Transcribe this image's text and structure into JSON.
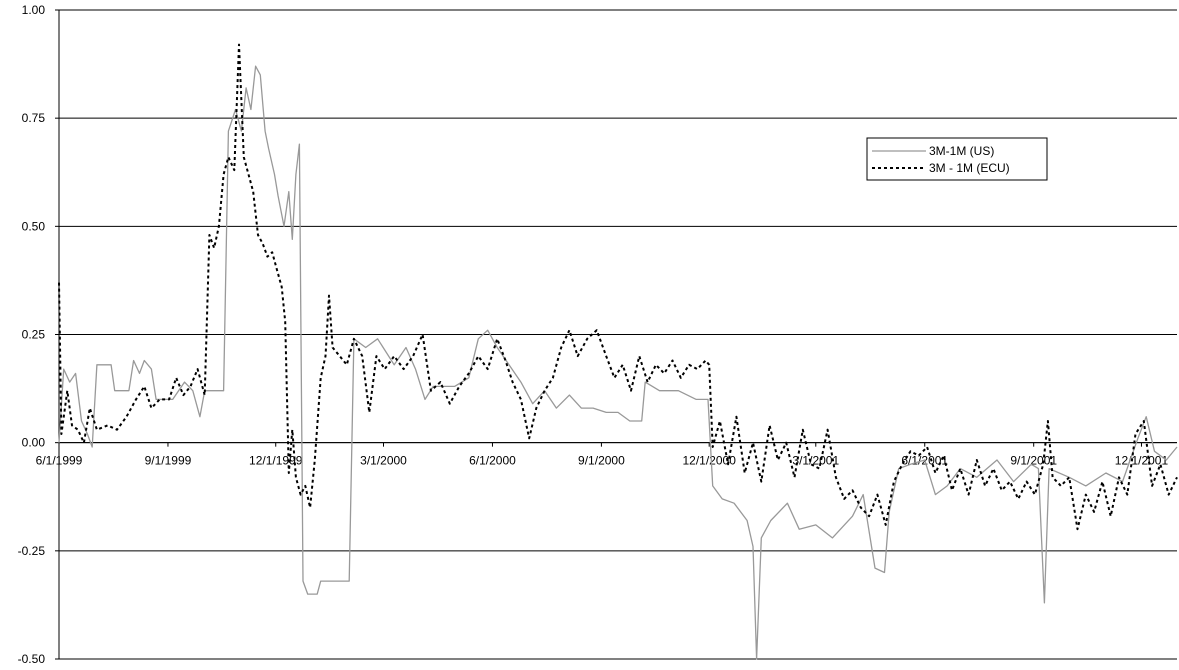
{
  "chart_data": {
    "type": "line",
    "title": "",
    "xlabel": "",
    "ylabel": "",
    "ylim": [
      -0.5,
      1.0
    ],
    "y_ticks": [
      "1.00",
      "0.75",
      "0.50",
      "0.25",
      "0.00",
      "-0.25",
      "-0.50"
    ],
    "y_tick_values": [
      1.0,
      0.75,
      0.5,
      0.25,
      0.0,
      -0.25,
      -0.5
    ],
    "x_ticks": [
      "6/1/1999",
      "9/1/1999",
      "12/1/1999",
      "3/1/2000",
      "6/1/2000",
      "9/1/2000",
      "12/1/2000",
      "3/1/2001",
      "6/1/2001",
      "9/1/2001",
      "12/1/2001"
    ],
    "x_tick_dates": [
      "1999-06-01",
      "1999-09-01",
      "1999-12-01",
      "2000-03-01",
      "2000-06-01",
      "2000-09-01",
      "2000-12-01",
      "2001-03-01",
      "2001-06-01",
      "2001-09-01",
      "2001-12-01"
    ],
    "xlim": [
      "1999-06-01",
      "2001-12-31"
    ],
    "grid": "horizontal",
    "legend_position": "top-right",
    "series": [
      {
        "name": "3M-1M (US)",
        "color": "#999999",
        "style": "solid",
        "points": [
          [
            "1999-06-01",
            0.0
          ],
          [
            "1999-06-05",
            0.17
          ],
          [
            "1999-06-10",
            0.14
          ],
          [
            "1999-06-15",
            0.16
          ],
          [
            "1999-06-20",
            0.05
          ],
          [
            "1999-06-25",
            0.02
          ],
          [
            "1999-06-29",
            -0.01
          ],
          [
            "1999-07-03",
            0.18
          ],
          [
            "1999-07-15",
            0.18
          ],
          [
            "1999-07-18",
            0.12
          ],
          [
            "1999-07-30",
            0.12
          ],
          [
            "1999-08-03",
            0.19
          ],
          [
            "1999-08-08",
            0.16
          ],
          [
            "1999-08-12",
            0.19
          ],
          [
            "1999-08-18",
            0.17
          ],
          [
            "1999-08-22",
            0.1
          ],
          [
            "1999-09-05",
            0.1
          ],
          [
            "1999-09-15",
            0.14
          ],
          [
            "1999-09-22",
            0.12
          ],
          [
            "1999-09-28",
            0.06
          ],
          [
            "1999-10-02",
            0.12
          ],
          [
            "1999-10-18",
            0.12
          ],
          [
            "1999-10-22",
            0.72
          ],
          [
            "1999-10-28",
            0.77
          ],
          [
            "1999-11-02",
            0.72
          ],
          [
            "1999-11-06",
            0.82
          ],
          [
            "1999-11-10",
            0.77
          ],
          [
            "1999-11-14",
            0.87
          ],
          [
            "1999-11-18",
            0.85
          ],
          [
            "1999-11-22",
            0.72
          ],
          [
            "1999-11-25",
            0.68
          ],
          [
            "1999-11-30",
            0.62
          ],
          [
            "1999-12-03",
            0.57
          ],
          [
            "1999-12-08",
            0.5
          ],
          [
            "1999-12-12",
            0.58
          ],
          [
            "1999-12-15",
            0.47
          ],
          [
            "1999-12-18",
            0.62
          ],
          [
            "1999-12-21",
            0.69
          ],
          [
            "1999-12-24",
            -0.32
          ],
          [
            "1999-12-28",
            -0.35
          ],
          [
            "2000-01-05",
            -0.35
          ],
          [
            "2000-01-08",
            -0.32
          ],
          [
            "2000-01-20",
            -0.32
          ],
          [
            "2000-01-25",
            -0.32
          ],
          [
            "2000-02-01",
            -0.32
          ],
          [
            "2000-02-05",
            0.24
          ],
          [
            "2000-02-15",
            0.22
          ],
          [
            "2000-02-25",
            0.24
          ],
          [
            "2000-03-10",
            0.18
          ],
          [
            "2000-03-20",
            0.22
          ],
          [
            "2000-03-28",
            0.17
          ],
          [
            "2000-04-05",
            0.1
          ],
          [
            "2000-04-12",
            0.13
          ],
          [
            "2000-04-30",
            0.13
          ],
          [
            "2000-05-12",
            0.15
          ],
          [
            "2000-05-20",
            0.24
          ],
          [
            "2000-05-28",
            0.26
          ],
          [
            "2000-06-05",
            0.22
          ],
          [
            "2000-06-15",
            0.18
          ],
          [
            "2000-06-25",
            0.14
          ],
          [
            "2000-07-05",
            0.09
          ],
          [
            "2000-07-15",
            0.12
          ],
          [
            "2000-07-25",
            0.08
          ],
          [
            "2000-08-05",
            0.11
          ],
          [
            "2000-08-15",
            0.08
          ],
          [
            "2000-08-25",
            0.08
          ],
          [
            "2000-09-05",
            0.07
          ],
          [
            "2000-09-15",
            0.07
          ],
          [
            "2000-09-25",
            0.05
          ],
          [
            "2000-10-05",
            0.05
          ],
          [
            "2000-10-08",
            0.14
          ],
          [
            "2000-10-20",
            0.12
          ],
          [
            "2000-11-05",
            0.12
          ],
          [
            "2000-11-20",
            0.1
          ],
          [
            "2000-11-30",
            0.1
          ],
          [
            "2000-12-04",
            -0.1
          ],
          [
            "2000-12-12",
            -0.13
          ],
          [
            "2000-12-22",
            -0.14
          ],
          [
            "2001-01-02",
            -0.18
          ],
          [
            "2001-01-07",
            -0.24
          ],
          [
            "2001-01-10",
            -0.5
          ],
          [
            "2001-01-14",
            -0.22
          ],
          [
            "2001-01-22",
            -0.18
          ],
          [
            "2001-02-05",
            -0.14
          ],
          [
            "2001-02-15",
            -0.2
          ],
          [
            "2001-03-01",
            -0.19
          ],
          [
            "2001-03-15",
            -0.22
          ],
          [
            "2001-04-01",
            -0.17
          ],
          [
            "2001-04-10",
            -0.12
          ],
          [
            "2001-04-20",
            -0.29
          ],
          [
            "2001-04-28",
            -0.3
          ],
          [
            "2001-05-02",
            -0.16
          ],
          [
            "2001-05-10",
            -0.06
          ],
          [
            "2001-05-20",
            -0.05
          ],
          [
            "2001-06-01",
            -0.04
          ],
          [
            "2001-06-10",
            -0.12
          ],
          [
            "2001-06-20",
            -0.1
          ],
          [
            "2001-07-01",
            -0.06
          ],
          [
            "2001-07-15",
            -0.08
          ],
          [
            "2001-08-01",
            -0.04
          ],
          [
            "2001-08-15",
            -0.09
          ],
          [
            "2001-08-30",
            -0.05
          ],
          [
            "2001-09-05",
            -0.06
          ],
          [
            "2001-09-10",
            -0.37
          ],
          [
            "2001-09-14",
            -0.06
          ],
          [
            "2001-10-01",
            -0.08
          ],
          [
            "2001-10-15",
            -0.1
          ],
          [
            "2001-11-01",
            -0.07
          ],
          [
            "2001-11-15",
            -0.09
          ],
          [
            "2001-11-28",
            0.01
          ],
          [
            "2001-12-05",
            0.06
          ],
          [
            "2001-12-12",
            -0.02
          ],
          [
            "2001-12-22",
            -0.04
          ],
          [
            "2001-12-31",
            -0.01
          ]
        ]
      },
      {
        "name": "3M - 1M (ECU)",
        "color": "#000000",
        "style": "dotted",
        "points": [
          [
            "1999-06-01",
            0.37
          ],
          [
            "1999-06-03",
            0.02
          ],
          [
            "1999-06-08",
            0.12
          ],
          [
            "1999-06-12",
            0.04
          ],
          [
            "1999-06-17",
            0.03
          ],
          [
            "1999-06-22",
            0.0
          ],
          [
            "1999-06-27",
            0.08
          ],
          [
            "1999-07-03",
            0.03
          ],
          [
            "1999-07-12",
            0.04
          ],
          [
            "1999-07-20",
            0.03
          ],
          [
            "1999-07-28",
            0.06
          ],
          [
            "1999-08-05",
            0.1
          ],
          [
            "1999-08-12",
            0.13
          ],
          [
            "1999-08-18",
            0.08
          ],
          [
            "1999-08-25",
            0.1
          ],
          [
            "1999-09-02",
            0.1
          ],
          [
            "1999-09-08",
            0.15
          ],
          [
            "1999-09-14",
            0.11
          ],
          [
            "1999-09-20",
            0.13
          ],
          [
            "1999-09-26",
            0.17
          ],
          [
            "1999-10-02",
            0.11
          ],
          [
            "1999-10-06",
            0.48
          ],
          [
            "1999-10-10",
            0.45
          ],
          [
            "1999-10-14",
            0.5
          ],
          [
            "1999-10-18",
            0.62
          ],
          [
            "1999-10-22",
            0.66
          ],
          [
            "1999-10-27",
            0.63
          ],
          [
            "1999-10-31",
            0.92
          ],
          [
            "1999-11-04",
            0.66
          ],
          [
            "1999-11-08",
            0.62
          ],
          [
            "1999-11-12",
            0.58
          ],
          [
            "1999-11-16",
            0.48
          ],
          [
            "1999-11-20",
            0.46
          ],
          [
            "1999-11-24",
            0.43
          ],
          [
            "1999-11-28",
            0.44
          ],
          [
            "1999-12-02",
            0.4
          ],
          [
            "1999-12-06",
            0.36
          ],
          [
            "1999-12-09",
            0.28
          ],
          [
            "1999-12-12",
            -0.07
          ],
          [
            "1999-12-15",
            0.03
          ],
          [
            "1999-12-18",
            -0.08
          ],
          [
            "1999-12-22",
            -0.12
          ],
          [
            "1999-12-26",
            -0.1
          ],
          [
            "1999-12-30",
            -0.15
          ],
          [
            "2000-01-03",
            -0.04
          ],
          [
            "2000-01-08",
            0.15
          ],
          [
            "2000-01-12",
            0.2
          ],
          [
            "2000-01-15",
            0.34
          ],
          [
            "2000-01-18",
            0.22
          ],
          [
            "2000-01-24",
            0.2
          ],
          [
            "2000-01-30",
            0.18
          ],
          [
            "2000-02-05",
            0.24
          ],
          [
            "2000-02-12",
            0.2
          ],
          [
            "2000-02-18",
            0.07
          ],
          [
            "2000-02-24",
            0.2
          ],
          [
            "2000-03-02",
            0.17
          ],
          [
            "2000-03-10",
            0.2
          ],
          [
            "2000-03-18",
            0.17
          ],
          [
            "2000-03-26",
            0.2
          ],
          [
            "2000-04-03",
            0.25
          ],
          [
            "2000-04-10",
            0.12
          ],
          [
            "2000-04-18",
            0.14
          ],
          [
            "2000-04-26",
            0.09
          ],
          [
            "2000-05-04",
            0.13
          ],
          [
            "2000-05-12",
            0.16
          ],
          [
            "2000-05-20",
            0.2
          ],
          [
            "2000-05-28",
            0.17
          ],
          [
            "2000-06-05",
            0.24
          ],
          [
            "2000-06-12",
            0.19
          ],
          [
            "2000-06-18",
            0.14
          ],
          [
            "2000-06-25",
            0.1
          ],
          [
            "2000-07-02",
            0.01
          ],
          [
            "2000-07-08",
            0.08
          ],
          [
            "2000-07-15",
            0.12
          ],
          [
            "2000-07-22",
            0.15
          ],
          [
            "2000-07-29",
            0.22
          ],
          [
            "2000-08-05",
            0.26
          ],
          [
            "2000-08-12",
            0.2
          ],
          [
            "2000-08-20",
            0.24
          ],
          [
            "2000-08-28",
            0.26
          ],
          [
            "2000-09-05",
            0.2
          ],
          [
            "2000-09-12",
            0.15
          ],
          [
            "2000-09-19",
            0.18
          ],
          [
            "2000-09-26",
            0.12
          ],
          [
            "2000-10-03",
            0.2
          ],
          [
            "2000-10-10",
            0.14
          ],
          [
            "2000-10-17",
            0.18
          ],
          [
            "2000-10-24",
            0.16
          ],
          [
            "2000-10-31",
            0.19
          ],
          [
            "2000-11-07",
            0.15
          ],
          [
            "2000-11-14",
            0.18
          ],
          [
            "2000-11-21",
            0.17
          ],
          [
            "2000-11-28",
            0.19
          ],
          [
            "2000-12-01",
            0.18
          ],
          [
            "2000-12-04",
            -0.01
          ],
          [
            "2000-12-10",
            0.05
          ],
          [
            "2000-12-17",
            -0.05
          ],
          [
            "2000-12-24",
            0.06
          ],
          [
            "2000-12-31",
            -0.07
          ],
          [
            "2001-01-07",
            0.0
          ],
          [
            "2001-01-14",
            -0.09
          ],
          [
            "2001-01-21",
            0.04
          ],
          [
            "2001-01-28",
            -0.04
          ],
          [
            "2001-02-04",
            0.0
          ],
          [
            "2001-02-11",
            -0.08
          ],
          [
            "2001-02-18",
            0.03
          ],
          [
            "2001-02-25",
            -0.05
          ],
          [
            "2001-03-04",
            -0.06
          ],
          [
            "2001-03-11",
            0.03
          ],
          [
            "2001-03-18",
            -0.08
          ],
          [
            "2001-03-25",
            -0.13
          ],
          [
            "2001-04-01",
            -0.11
          ],
          [
            "2001-04-08",
            -0.15
          ],
          [
            "2001-04-15",
            -0.17
          ],
          [
            "2001-04-22",
            -0.12
          ],
          [
            "2001-04-29",
            -0.19
          ],
          [
            "2001-05-06",
            -0.09
          ],
          [
            "2001-05-13",
            -0.05
          ],
          [
            "2001-05-20",
            -0.02
          ],
          [
            "2001-05-27",
            -0.03
          ],
          [
            "2001-06-03",
            -0.01
          ],
          [
            "2001-06-10",
            -0.07
          ],
          [
            "2001-06-17",
            -0.03
          ],
          [
            "2001-06-24",
            -0.11
          ],
          [
            "2001-07-01",
            -0.06
          ],
          [
            "2001-07-08",
            -0.12
          ],
          [
            "2001-07-15",
            -0.04
          ],
          [
            "2001-07-22",
            -0.1
          ],
          [
            "2001-07-29",
            -0.06
          ],
          [
            "2001-08-05",
            -0.11
          ],
          [
            "2001-08-12",
            -0.09
          ],
          [
            "2001-08-19",
            -0.13
          ],
          [
            "2001-08-26",
            -0.09
          ],
          [
            "2001-09-02",
            -0.12
          ],
          [
            "2001-09-09",
            -0.05
          ],
          [
            "2001-09-13",
            0.05
          ],
          [
            "2001-09-17",
            -0.08
          ],
          [
            "2001-09-24",
            -0.1
          ],
          [
            "2001-10-01",
            -0.08
          ],
          [
            "2001-10-08",
            -0.2
          ],
          [
            "2001-10-15",
            -0.12
          ],
          [
            "2001-10-22",
            -0.16
          ],
          [
            "2001-10-29",
            -0.09
          ],
          [
            "2001-11-05",
            -0.17
          ],
          [
            "2001-11-12",
            -0.08
          ],
          [
            "2001-11-19",
            -0.12
          ],
          [
            "2001-11-26",
            0.02
          ],
          [
            "2001-12-03",
            0.05
          ],
          [
            "2001-12-10",
            -0.1
          ],
          [
            "2001-12-17",
            -0.05
          ],
          [
            "2001-12-24",
            -0.12
          ],
          [
            "2001-12-31",
            -0.08
          ]
        ]
      }
    ]
  }
}
